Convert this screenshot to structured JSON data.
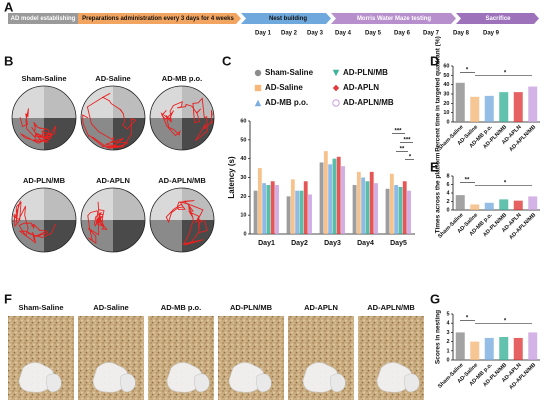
{
  "panels": {
    "a": "A",
    "b": "B",
    "c": "C",
    "d": "D",
    "e": "E",
    "f": "F",
    "g": "G"
  },
  "timeline": {
    "stages": [
      "AD model establishing",
      "Preparations administration every 3 days for 4 weeks",
      "Nest building",
      "Morris Water Maze testing",
      "Sacrifice"
    ],
    "days": [
      "Day 1",
      "Day 2",
      "Day 3",
      "Day 4",
      "Day 5",
      "Day 6",
      "Day 7",
      "Day 8",
      "Day 9"
    ]
  },
  "maze": {
    "groups": [
      "Sham-Saline",
      "AD-Saline",
      "AD-MB p.o.",
      "AD-PLN/MB",
      "AD-APLN",
      "AD-APLN/MB"
    ]
  },
  "nest": {
    "groups": [
      "Sham-Saline",
      "AD-Saline",
      "AD-MB p.o.",
      "AD-PLN/MB",
      "AD-APLN",
      "AD-APLN/MB"
    ]
  },
  "chart_data": [
    {
      "type": "grouped_bar",
      "y_label": "Latency (s)",
      "categories": [
        "Day1",
        "Day2",
        "Day3",
        "Day4",
        "Day5"
      ],
      "series": [
        {
          "name": "Sham-Saline",
          "color": "#8c8c8c",
          "marker": "circle",
          "values": [
            23,
            20,
            38,
            26,
            24
          ]
        },
        {
          "name": "AD-Saline",
          "color": "#f5b87a",
          "marker": "square",
          "values": [
            35,
            29,
            44,
            33,
            32
          ]
        },
        {
          "name": "AD-MB p.o.",
          "color": "#7aaee0",
          "marker": "triangle-up",
          "values": [
            27,
            23,
            37,
            30,
            26
          ]
        },
        {
          "name": "AD-PLN/MB",
          "color": "#3bb39a",
          "marker": "triangle-down",
          "values": [
            26,
            23,
            40,
            28,
            25
          ]
        },
        {
          "name": "AD-APLN",
          "color": "#e03a3a",
          "marker": "diamond",
          "values": [
            28,
            28,
            41,
            33,
            28
          ]
        },
        {
          "name": "AD-APLN/MB",
          "color": "#c9a0e0",
          "marker": "open-circle",
          "values": [
            26,
            21,
            36,
            27,
            23
          ]
        }
      ],
      "ylim": [
        0,
        60
      ],
      "yticks": [
        0,
        10,
        20,
        30,
        40,
        50,
        60
      ],
      "annotations": [
        "***",
        "***",
        "**",
        "*"
      ]
    },
    {
      "type": "bar",
      "y_label": "Percent time in targeted quadrant (%)",
      "categories": [
        "Sham-Saline",
        "AD-Saline",
        "AD-MB p.o.",
        "AD-PLN/MB",
        "AD-APLN",
        "AD-APLN/MB"
      ],
      "values": [
        42,
        27,
        28,
        32,
        32,
        38
      ],
      "colors": [
        "#8c8c8c",
        "#f5b87a",
        "#7aaee0",
        "#3bb39a",
        "#e03a3a",
        "#c9a0e0"
      ],
      "ylim": [
        0,
        60
      ],
      "yticks": [
        0,
        10,
        20,
        30,
        40,
        50,
        60
      ],
      "annotations": [
        "*",
        "*"
      ]
    },
    {
      "type": "bar",
      "y_label": "Times across the platform",
      "categories": [
        "Sham-Saline",
        "AD-Saline",
        "AD-MB p.o.",
        "AD-PLN/MB",
        "AD-APLN",
        "AD-APLN/MB"
      ],
      "values": [
        3.5,
        1.3,
        1.7,
        2.5,
        2.2,
        3.2
      ],
      "colors": [
        "#8c8c8c",
        "#f5b87a",
        "#7aaee0",
        "#3bb39a",
        "#e03a3a",
        "#c9a0e0"
      ],
      "ylim": [
        0,
        8
      ],
      "yticks": [
        0,
        2,
        4,
        6,
        8
      ],
      "annotations": [
        "**",
        "*"
      ]
    },
    {
      "type": "bar",
      "y_label": "Scores in nesting",
      "categories": [
        "Sham-Saline",
        "AD-Saline",
        "AD-MB p.o.",
        "AD-PLN/MB",
        "AD-APLN",
        "AD-APLN/MB"
      ],
      "values": [
        3.0,
        2.0,
        2.4,
        2.5,
        2.4,
        3.0
      ],
      "colors": [
        "#8c8c8c",
        "#f5b87a",
        "#7aaee0",
        "#3bb39a",
        "#e03a3a",
        "#c9a0e0"
      ],
      "ylim": [
        0,
        5
      ],
      "yticks": [
        0,
        1,
        2,
        3,
        4,
        5
      ],
      "annotations": [
        "*",
        "*"
      ]
    }
  ]
}
